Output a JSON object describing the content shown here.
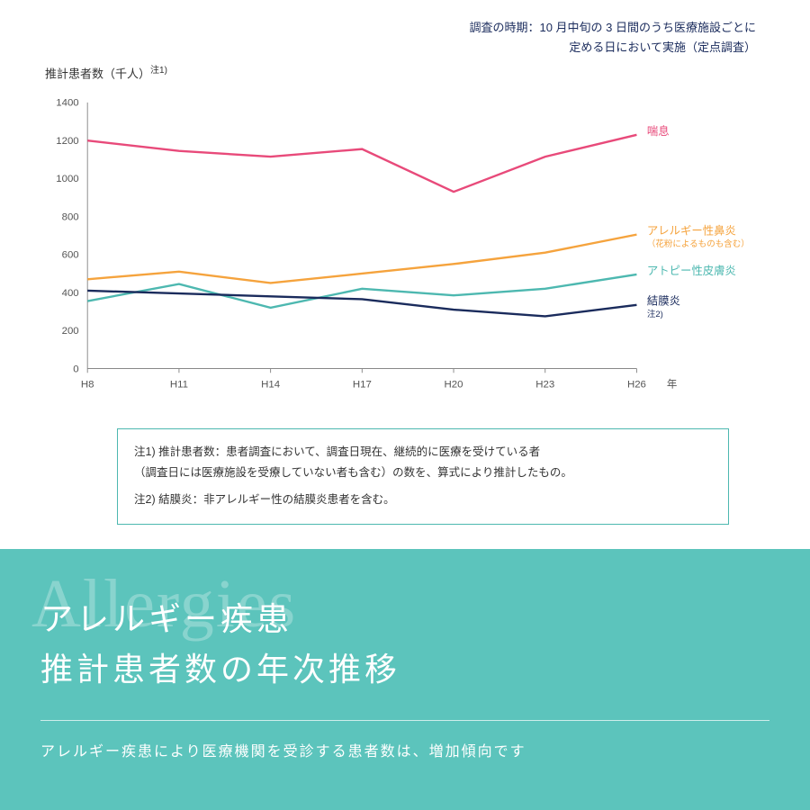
{
  "survey_note_line1": "調査の時期：10 月中旬の 3 日間のうち医療施設ごとに",
  "survey_note_line2": "定める日において実施（定点調査）",
  "y_axis_label": "推計患者数（千人）",
  "y_axis_note": "注1)",
  "x_unit": "年",
  "chart": {
    "type": "line",
    "xlim": [
      0,
      6
    ],
    "ylim": [
      0,
      1400
    ],
    "ytick_step": 200,
    "yticks": [
      0,
      200,
      400,
      600,
      800,
      1000,
      1200,
      1400
    ],
    "xticks": [
      "H8",
      "H11",
      "H14",
      "H17",
      "H20",
      "H23",
      "H26"
    ],
    "axis_color": "#888888",
    "grid_color": "#dddddd",
    "background_color": "#ffffff",
    "line_width": 2.5,
    "label_fontsize": 13,
    "tick_fontsize": 12,
    "series": [
      {
        "name": "喘息",
        "sublabel": "",
        "color": "#e84a7a",
        "values": [
          1200,
          1145,
          1115,
          1155,
          930,
          1115,
          1230
        ]
      },
      {
        "name": "アレルギー性鼻炎",
        "sublabel": "（花粉によるものも含む）",
        "color": "#f5a33d",
        "values": [
          470,
          510,
          450,
          500,
          550,
          610,
          705
        ]
      },
      {
        "name": "アトピー性皮膚炎",
        "sublabel": "",
        "color": "#4db8b0",
        "values": [
          355,
          445,
          320,
          420,
          385,
          420,
          495
        ]
      },
      {
        "name": "結膜炎",
        "sublabel": "注2)",
        "color": "#1a2b5c",
        "values": [
          410,
          395,
          380,
          365,
          310,
          275,
          335
        ]
      }
    ]
  },
  "footnotes": {
    "note1_line1": "注1) 推計患者数：患者調査において、調査日現在、継続的に医療を受けている者",
    "note1_line2": "（調査日には医療施設を受療していない者も含む）の数を、算式により推計したもの。",
    "note2": "注2) 結膜炎：非アレルギー性の結膜炎患者を含む。"
  },
  "bottom": {
    "bg_text": "Allergies",
    "title_line1": "アレルギー疾患",
    "title_line2": "推計患者数の年次推移",
    "subtitle": "アレルギー疾患により医療機関を受診する患者数は、増加傾向です",
    "bg_color": "#5cc4bc",
    "text_color": "#ffffff"
  }
}
